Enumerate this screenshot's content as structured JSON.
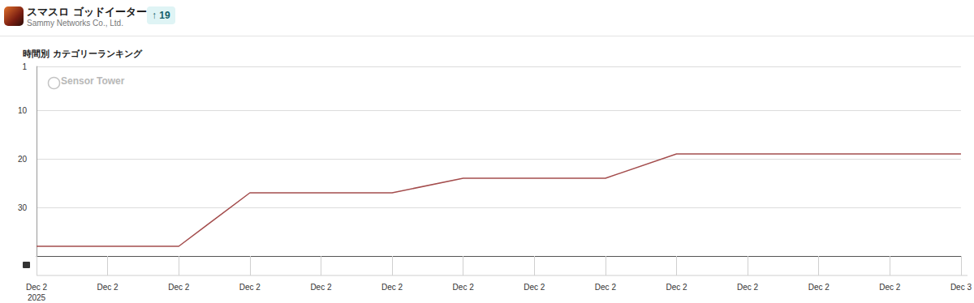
{
  "header": {
    "app_name": "スマスロ ゴッドイーター…",
    "developer": "Sammy Networks Co., Ltd.",
    "badge": "↑ 19"
  },
  "chart_data": {
    "type": "line",
    "title": "時間別 カテゴリーランキング",
    "annotations": [
      "Sensor Tower"
    ],
    "categories": [
      "Dec 2\n2025",
      "Dec 2",
      "Dec 2",
      "Dec 2",
      "Dec 2",
      "Dec 2",
      "Dec 2",
      "Dec 2",
      "Dec 2",
      "Dec 2",
      "Dec 2",
      "Dec 2",
      "Dec 2",
      "Dec 3"
    ],
    "values": [
      38,
      38,
      38,
      27,
      27,
      27,
      24,
      24,
      24,
      19,
      19,
      19,
      19,
      19
    ],
    "color": "#a44d4d",
    "ylim": [
      40,
      1
    ],
    "yticks": [
      1,
      10,
      20,
      30
    ],
    "grid": true
  }
}
